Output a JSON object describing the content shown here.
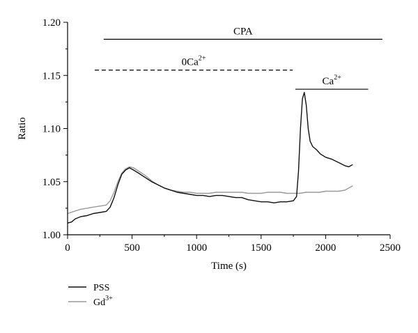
{
  "chart_data": {
    "type": "line",
    "title": "",
    "xlabel": "Time (s)",
    "ylabel": "Ratio",
    "xlim": [
      0,
      2500
    ],
    "ylim": [
      1.0,
      1.2
    ],
    "x_ticks": [
      0,
      500,
      1000,
      1500,
      2000,
      2500
    ],
    "y_ticks": [
      1.0,
      1.05,
      1.1,
      1.15,
      1.2
    ],
    "x_tick_labels": [
      "0",
      "500",
      "1000",
      "1500",
      "2000",
      "2500"
    ],
    "y_tick_labels": [
      "1.00",
      "1.05",
      "1.10",
      "1.15",
      "1.20"
    ],
    "grid": false,
    "legend_position": "bottom-left, below plot",
    "annotations": [
      {
        "id": "cpa",
        "style": "solid",
        "x_start": 280,
        "x_end": 2440,
        "y": 1.184,
        "label": "CPA"
      },
      {
        "id": "zero-ca",
        "style": "dashed",
        "x_start": 210,
        "x_end": 1745,
        "y": 1.155,
        "label_base": "0Ca",
        "label_sup": "2+"
      },
      {
        "id": "ca",
        "style": "solid",
        "x_start": 1765,
        "x_end": 2330,
        "y": 1.137,
        "label_base": "Ca",
        "label_sup": "2+"
      }
    ],
    "series": [
      {
        "name": "PSS",
        "color": "#111111",
        "points": [
          [
            0,
            1.011
          ],
          [
            30,
            1.012
          ],
          [
            60,
            1.015
          ],
          [
            100,
            1.017
          ],
          [
            150,
            1.018
          ],
          [
            200,
            1.02
          ],
          [
            250,
            1.021
          ],
          [
            300,
            1.022
          ],
          [
            330,
            1.026
          ],
          [
            360,
            1.035
          ],
          [
            390,
            1.047
          ],
          [
            420,
            1.057
          ],
          [
            450,
            1.061
          ],
          [
            480,
            1.063
          ],
          [
            510,
            1.061
          ],
          [
            550,
            1.058
          ],
          [
            600,
            1.054
          ],
          [
            650,
            1.05
          ],
          [
            700,
            1.047
          ],
          [
            750,
            1.044
          ],
          [
            800,
            1.042
          ],
          [
            850,
            1.04
          ],
          [
            900,
            1.039
          ],
          [
            950,
            1.038
          ],
          [
            1000,
            1.037
          ],
          [
            1050,
            1.037
          ],
          [
            1100,
            1.036
          ],
          [
            1150,
            1.037
          ],
          [
            1200,
            1.037
          ],
          [
            1250,
            1.036
          ],
          [
            1300,
            1.035
          ],
          [
            1350,
            1.035
          ],
          [
            1400,
            1.033
          ],
          [
            1450,
            1.032
          ],
          [
            1500,
            1.031
          ],
          [
            1550,
            1.031
          ],
          [
            1600,
            1.03
          ],
          [
            1650,
            1.031
          ],
          [
            1700,
            1.031
          ],
          [
            1750,
            1.032
          ],
          [
            1775,
            1.036
          ],
          [
            1790,
            1.06
          ],
          [
            1805,
            1.1
          ],
          [
            1820,
            1.128
          ],
          [
            1835,
            1.134
          ],
          [
            1850,
            1.122
          ],
          [
            1865,
            1.1
          ],
          [
            1880,
            1.088
          ],
          [
            1900,
            1.083
          ],
          [
            1930,
            1.08
          ],
          [
            1960,
            1.076
          ],
          [
            2000,
            1.073
          ],
          [
            2050,
            1.071
          ],
          [
            2100,
            1.068
          ],
          [
            2150,
            1.065
          ],
          [
            2180,
            1.064
          ],
          [
            2210,
            1.066
          ]
        ]
      },
      {
        "name": "Gd",
        "name_sup": "3+",
        "color": "#999999",
        "points": [
          [
            0,
            1.02
          ],
          [
            50,
            1.022
          ],
          [
            100,
            1.024
          ],
          [
            150,
            1.025
          ],
          [
            200,
            1.026
          ],
          [
            250,
            1.027
          ],
          [
            300,
            1.028
          ],
          [
            330,
            1.032
          ],
          [
            360,
            1.04
          ],
          [
            390,
            1.05
          ],
          [
            420,
            1.058
          ],
          [
            450,
            1.062
          ],
          [
            480,
            1.064
          ],
          [
            510,
            1.063
          ],
          [
            550,
            1.06
          ],
          [
            600,
            1.056
          ],
          [
            650,
            1.051
          ],
          [
            700,
            1.047
          ],
          [
            750,
            1.044
          ],
          [
            800,
            1.042
          ],
          [
            850,
            1.041
          ],
          [
            900,
            1.04
          ],
          [
            950,
            1.04
          ],
          [
            1000,
            1.039
          ],
          [
            1050,
            1.039
          ],
          [
            1100,
            1.039
          ],
          [
            1150,
            1.04
          ],
          [
            1200,
            1.04
          ],
          [
            1250,
            1.04
          ],
          [
            1300,
            1.04
          ],
          [
            1350,
            1.04
          ],
          [
            1400,
            1.039
          ],
          [
            1450,
            1.039
          ],
          [
            1500,
            1.039
          ],
          [
            1550,
            1.04
          ],
          [
            1600,
            1.04
          ],
          [
            1650,
            1.04
          ],
          [
            1700,
            1.039
          ],
          [
            1750,
            1.039
          ],
          [
            1800,
            1.039
          ],
          [
            1850,
            1.04
          ],
          [
            1900,
            1.04
          ],
          [
            1950,
            1.04
          ],
          [
            2000,
            1.041
          ],
          [
            2050,
            1.041
          ],
          [
            2100,
            1.041
          ],
          [
            2150,
            1.042
          ],
          [
            2210,
            1.046
          ]
        ]
      }
    ]
  }
}
